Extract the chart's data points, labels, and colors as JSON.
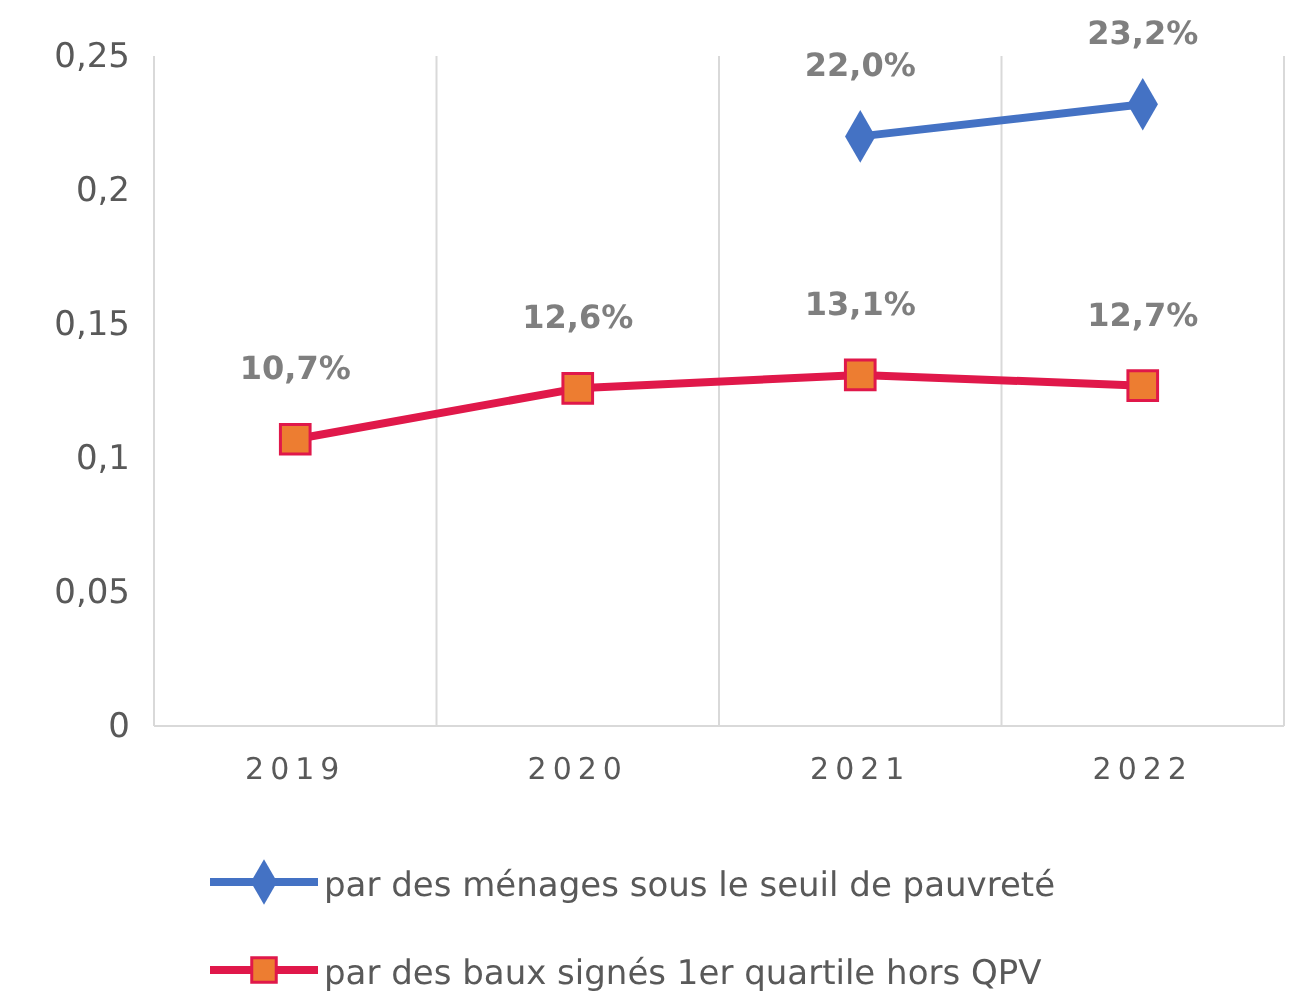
{
  "chart_data": {
    "type": "line",
    "categories": [
      "2019",
      "2020",
      "2021",
      "2022"
    ],
    "ylim": [
      0,
      0.25
    ],
    "yticks": [
      {
        "value": 0,
        "label": "0"
      },
      {
        "value": 0.05,
        "label": "0,05"
      },
      {
        "value": 0.1,
        "label": "0,1"
      },
      {
        "value": 0.15,
        "label": "0,15"
      },
      {
        "value": 0.2,
        "label": "0,2"
      },
      {
        "value": 0.25,
        "label": "0,25"
      }
    ],
    "grid": "x",
    "legend": "bottom",
    "series": [
      {
        "name": "par des ménages sous le seuil de pauvreté",
        "color": "#4472c4",
        "marker": "diamond",
        "values": [
          null,
          null,
          0.22,
          0.232
        ],
        "value_labels": [
          null,
          null,
          "22,0%",
          "23,2%"
        ]
      },
      {
        "name": "par des baux signés 1er quartile hors QPV",
        "color": "#e0184a",
        "marker": "square",
        "values": [
          0.107,
          0.126,
          0.131,
          0.127
        ],
        "value_labels": [
          "10,7%",
          "12,6%",
          "13,1%",
          "12,7%"
        ]
      }
    ]
  }
}
